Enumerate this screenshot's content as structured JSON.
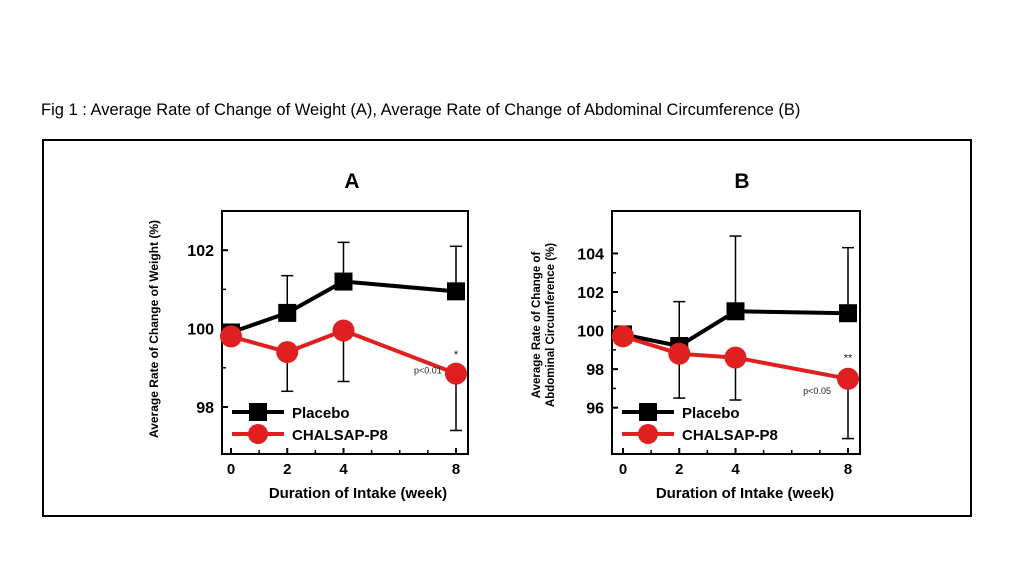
{
  "figure_title": "Fig 1 : Average Rate of Change of Weight (A), Average Rate of Change of Abdominal Circumference (B)",
  "chart_data": [
    {
      "type": "line",
      "panel_label": "A",
      "xlabel": "Duration of Intake (week)",
      "ylabel": "Average Rate of Change of Weight (%)",
      "x": [
        0,
        2,
        4,
        8
      ],
      "x_ticks": [
        "0",
        "2",
        "4",
        "8"
      ],
      "ylim": [
        96.8,
        103
      ],
      "y_ticks": [
        "102",
        "100",
        "98"
      ],
      "y_tick_values": [
        102,
        100,
        98
      ],
      "series": [
        {
          "name": "Placebo",
          "color": "#000000",
          "marker": "square",
          "values": [
            99.9,
            100.4,
            101.2,
            100.95
          ],
          "err_up": [
            null,
            0.95,
            1.0,
            1.15
          ],
          "err_down": [
            null,
            null,
            null,
            null
          ]
        },
        {
          "name": "CHALSAP-P8",
          "color": "#e02020",
          "marker": "circle",
          "values": [
            99.8,
            99.4,
            99.95,
            98.85
          ],
          "err_up": [
            null,
            null,
            null,
            null
          ],
          "err_down": [
            null,
            1.0,
            1.3,
            1.45
          ]
        }
      ],
      "annotations": [
        {
          "text": "p<0.01",
          "x": 7.0,
          "y": 98.85
        },
        {
          "text": "*",
          "x": 8,
          "y": 99.25
        }
      ],
      "legend_position": "bottom-left"
    },
    {
      "type": "line",
      "panel_label": "B",
      "xlabel": "Duration of Intake (week)",
      "ylabel": "Average Rate of Change of Abdominal Circumference (%)",
      "ylabel_lines": [
        "Average Rate of Change of",
        "Abdominal Circumference (%)"
      ],
      "x": [
        0,
        2,
        4,
        8
      ],
      "x_ticks": [
        "0",
        "2",
        "4",
        "8"
      ],
      "ylim": [
        93.6,
        106.2
      ],
      "y_ticks": [
        "104",
        "102",
        "100",
        "98",
        "96"
      ],
      "y_tick_values": [
        104,
        102,
        100,
        98,
        96
      ],
      "series": [
        {
          "name": "Placebo",
          "color": "#000000",
          "marker": "square",
          "values": [
            99.8,
            99.2,
            101.0,
            100.9
          ],
          "err_up": [
            null,
            2.3,
            3.9,
            3.4
          ],
          "err_down": [
            null,
            null,
            null,
            null
          ]
        },
        {
          "name": "CHALSAP-P8",
          "color": "#e02020",
          "marker": "circle",
          "values": [
            99.7,
            98.8,
            98.6,
            97.5
          ],
          "err_up": [
            null,
            null,
            null,
            null
          ],
          "err_down": [
            null,
            2.3,
            2.2,
            3.1
          ]
        }
      ],
      "annotations": [
        {
          "text": "p<0.05",
          "x": 6.9,
          "y": 96.7
        },
        {
          "text": "**",
          "x": 8,
          "y": 98.4
        }
      ],
      "legend_position": "bottom-left"
    }
  ]
}
